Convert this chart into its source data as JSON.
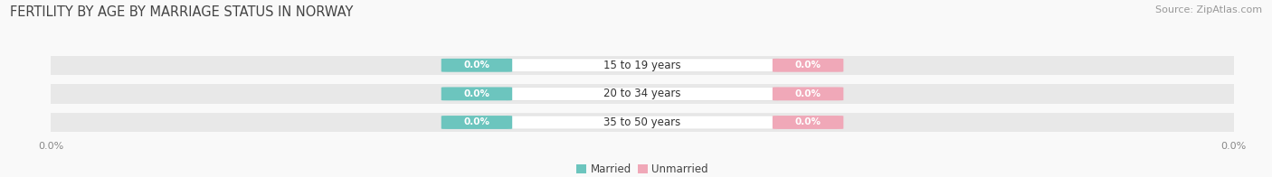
{
  "title": "FERTILITY BY AGE BY MARRIAGE STATUS IN NORWAY",
  "source": "Source: ZipAtlas.com",
  "categories": [
    "15 to 19 years",
    "20 to 34 years",
    "35 to 50 years"
  ],
  "married_values": [
    0.0,
    0.0,
    0.0
  ],
  "unmarried_values": [
    0.0,
    0.0,
    0.0
  ],
  "married_color": "#6cc5be",
  "unmarried_color": "#f0a8b8",
  "bar_bg_color": "#e8e8e8",
  "center_bg_color": "#f8f8f8",
  "title_fontsize": 10.5,
  "source_fontsize": 8,
  "label_fontsize": 7.5,
  "tick_fontsize": 8,
  "category_fontsize": 8.5,
  "legend_fontsize": 8.5,
  "background_color": "#f9f9f9"
}
